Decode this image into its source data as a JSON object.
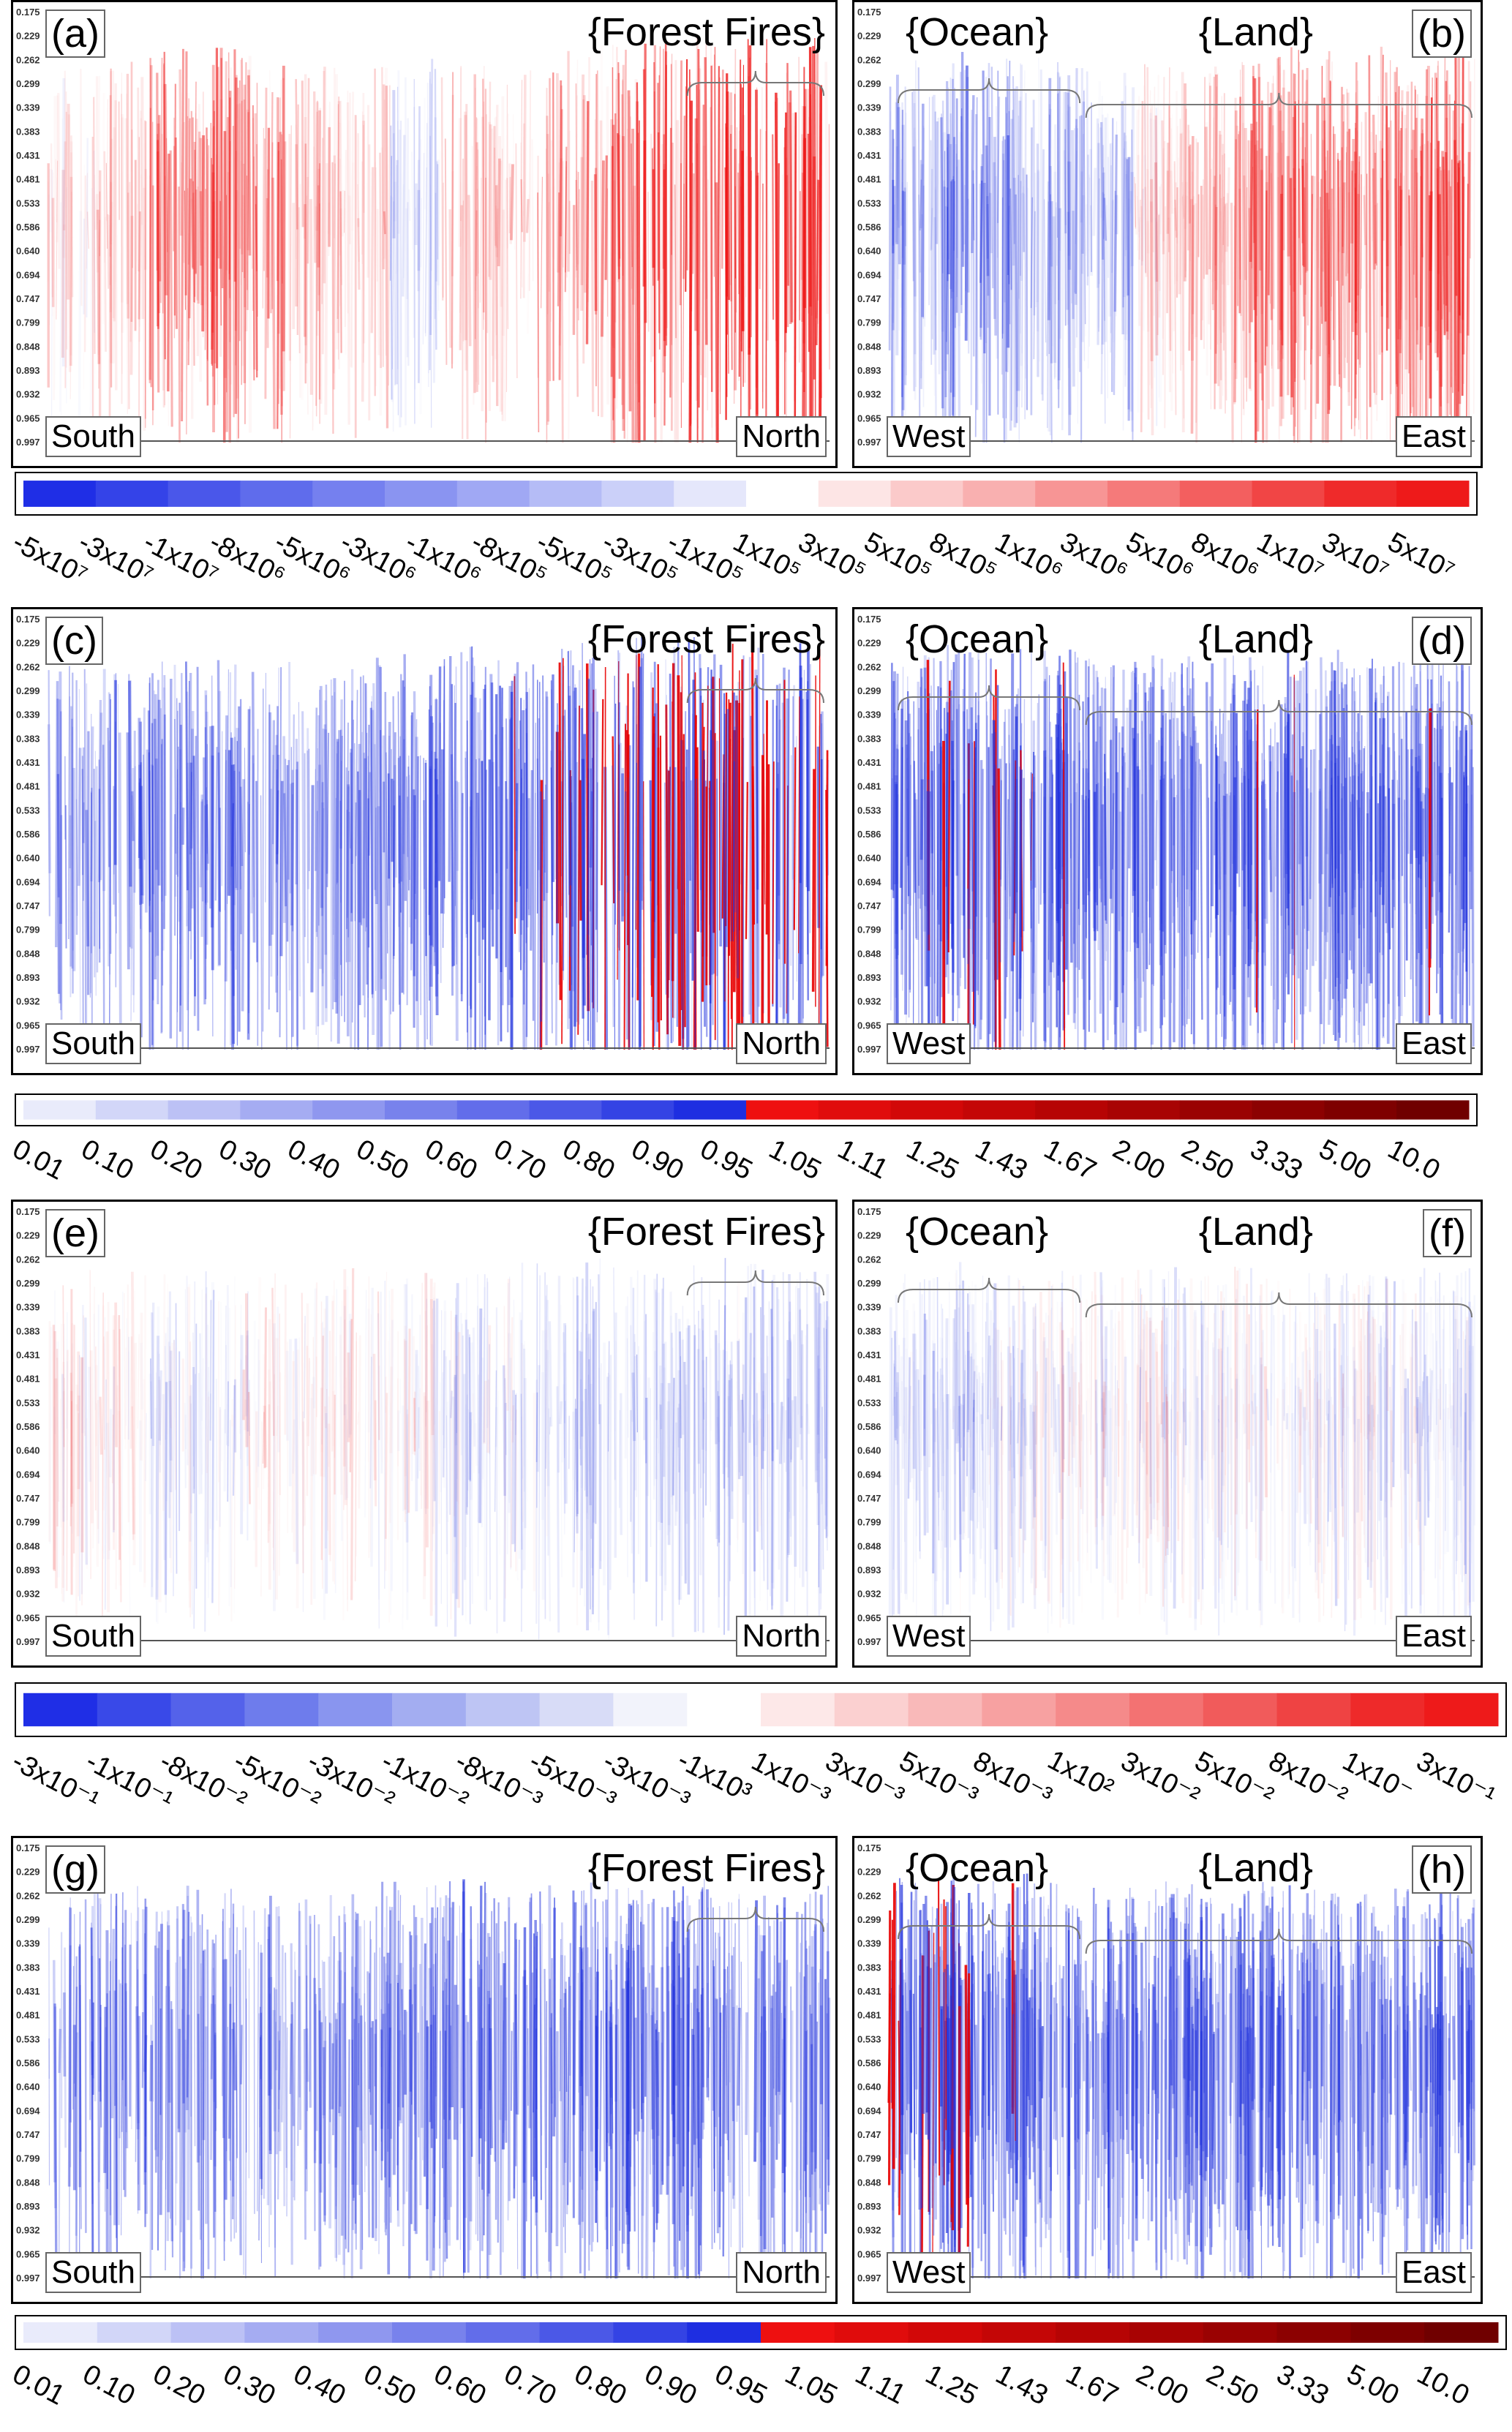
{
  "chart_data": [
    {
      "type": "heatmap",
      "panel_label": "(a)",
      "region_labels": [
        "{Forest Fires}"
      ],
      "left_label": "South",
      "right_label": "North",
      "y_ticks": [
        "0.175",
        "0.229",
        "0.262",
        "0.299",
        "0.339",
        "0.383",
        "0.431",
        "0.481",
        "0.533",
        "0.586",
        "0.640",
        "0.694",
        "0.747",
        "0.799",
        "0.848",
        "0.893",
        "0.932",
        "0.965",
        "0.997"
      ],
      "colorbar_group": "signed_large",
      "pattern": [
        0.1,
        0.2,
        0.55,
        0.6,
        0.55,
        0.3,
        0.2,
        -0.2,
        0.3,
        0.2,
        0.5,
        0.7,
        0.8,
        0.9,
        0.95,
        0.9
      ]
    },
    {
      "type": "heatmap",
      "panel_label": "(b)",
      "region_labels": [
        "{Ocean}",
        "{Land}"
      ],
      "left_label": "West",
      "right_label": "East",
      "y_ticks": [
        "0.175",
        "0.229",
        "0.262",
        "0.299",
        "0.339",
        "0.383",
        "0.431",
        "0.481",
        "0.533",
        "0.586",
        "0.640",
        "0.694",
        "0.747",
        "0.799",
        "0.848",
        "0.893",
        "0.932",
        "0.965",
        "0.997"
      ],
      "colorbar_group": "signed_large",
      "pattern": [
        -0.3,
        -0.5,
        -0.4,
        -0.3,
        -0.2,
        0.1,
        0.2,
        0.5,
        0.6,
        0.5,
        0.6,
        0.7
      ]
    },
    {
      "type": "heatmap",
      "panel_label": "(c)",
      "region_labels": [
        "{Forest Fires}"
      ],
      "left_label": "South",
      "right_label": "North",
      "y_ticks": [
        "0.175",
        "0.229",
        "0.262",
        "0.299",
        "0.339",
        "0.383",
        "0.431",
        "0.481",
        "0.533",
        "0.586",
        "0.640",
        "0.694",
        "0.747",
        "0.799",
        "0.848",
        "0.893",
        "0.932",
        "0.965",
        "0.997"
      ],
      "colorbar_group": "ratio",
      "pattern": [
        0.4,
        0.5,
        0.5,
        0.5,
        0.45,
        0.4,
        0.5,
        0.6,
        0.7,
        0.7,
        0.8,
        0.9,
        1.0,
        1.0,
        1.0,
        0.9
      ]
    },
    {
      "type": "heatmap",
      "panel_label": "(d)",
      "region_labels": [
        "{Ocean}",
        "{Land}"
      ],
      "left_label": "West",
      "right_label": "East",
      "y_ticks": [
        "0.175",
        "0.229",
        "0.262",
        "0.299",
        "0.339",
        "0.383",
        "0.431",
        "0.481",
        "0.533",
        "0.586",
        "0.640",
        "0.694",
        "0.747",
        "0.799",
        "0.848",
        "0.893",
        "0.932",
        "0.965",
        "0.997"
      ],
      "colorbar_group": "ratio",
      "pattern": [
        0.7,
        0.8,
        0.8,
        0.7,
        0.6,
        0.6,
        0.6,
        0.7,
        0.7,
        0.6,
        0.6,
        0.7
      ]
    },
    {
      "type": "heatmap",
      "panel_label": "(e)",
      "region_labels": [
        "{Forest Fires}"
      ],
      "left_label": "South",
      "right_label": "North",
      "y_ticks": [
        "0.175",
        "0.229",
        "0.262",
        "0.299",
        "0.339",
        "0.383",
        "0.431",
        "0.481",
        "0.533",
        "0.586",
        "0.640",
        "0.694",
        "0.747",
        "0.799",
        "0.848",
        "0.893",
        "0.932",
        "0.965",
        "0.997"
      ],
      "colorbar_group": "signed_small",
      "pattern": [
        0.05,
        0.05,
        -0.1,
        -0.1,
        0.05,
        0,
        0.05,
        0,
        -0.1,
        -0.1,
        -0.15,
        -0.2,
        -0.2,
        -0.2,
        -0.15,
        -0.2
      ]
    },
    {
      "type": "heatmap",
      "panel_label": "(f)",
      "region_labels": [
        "{Ocean}",
        "{Land}"
      ],
      "left_label": "West",
      "right_label": "East",
      "y_ticks": [
        "0.175",
        "0.229",
        "0.262",
        "0.299",
        "0.339",
        "0.383",
        "0.431",
        "0.481",
        "0.533",
        "0.586",
        "0.640",
        "0.694",
        "0.747",
        "0.799",
        "0.848",
        "0.893",
        "0.932",
        "0.965",
        "0.997"
      ],
      "colorbar_group": "signed_small",
      "pattern": [
        -0.15,
        -0.15,
        -0.1,
        0,
        0,
        0,
        -0.05,
        0,
        0,
        -0.05,
        -0.1,
        -0.1
      ]
    },
    {
      "type": "heatmap",
      "panel_label": "(g)",
      "region_labels": [
        "{Forest Fires}"
      ],
      "left_label": "South",
      "right_label": "North",
      "y_ticks": [
        "0.175",
        "0.229",
        "0.262",
        "0.299",
        "0.339",
        "0.383",
        "0.431",
        "0.481",
        "0.533",
        "0.586",
        "0.640",
        "0.694",
        "0.747",
        "0.799",
        "0.848",
        "0.893",
        "0.932",
        "0.965",
        "0.997"
      ],
      "colorbar_group": "ratio",
      "pattern": [
        0.5,
        0.55,
        0.5,
        0.45,
        0.4,
        0.4,
        0.5,
        0.6,
        0.6,
        0.6,
        0.6,
        0.65,
        0.6,
        0.6,
        0.55,
        0.6
      ]
    },
    {
      "type": "heatmap",
      "panel_label": "(h)",
      "region_labels": [
        "{Ocean}",
        "{Land}"
      ],
      "left_label": "West",
      "right_label": "East",
      "y_ticks": [
        "0.175",
        "0.229",
        "0.262",
        "0.299",
        "0.339",
        "0.383",
        "0.431",
        "0.481",
        "0.533",
        "0.586",
        "0.640",
        "0.694",
        "0.747",
        "0.799",
        "0.848",
        "0.893",
        "0.932",
        "0.965",
        "0.997"
      ],
      "colorbar_group": "ratio",
      "pattern": [
        0.8,
        0.85,
        0.7,
        0.6,
        0.6,
        0.55,
        0.55,
        0.6,
        0.6,
        0.55,
        0.6,
        0.6
      ]
    }
  ],
  "colorbars": {
    "signed_large": {
      "colors": [
        "#1f2ee6",
        "#3443e8",
        "#4a57ea",
        "#5f6cec",
        "#7580ef",
        "#8a94f1",
        "#a0a8f4",
        "#b5bcf6",
        "#cbd0f9",
        "#e5e7fb",
        "#ffffff",
        "#fde5e5",
        "#fbcaca",
        "#f9b0b0",
        "#f79595",
        "#f57a7a",
        "#f35f5f",
        "#f14545",
        "#ef2a2a",
        "#ee1a1a"
      ],
      "ticks": [
        "-5x10⁷",
        "-3x10⁷",
        "-1x10⁷",
        "-8x10⁶",
        "-5x10⁶",
        "-3x10⁶",
        "-1x10⁶",
        "-8x10⁵",
        "-5x10⁵",
        "-3x10⁵",
        "-1x10⁵",
        "1x10⁵",
        "3x10⁵",
        "5x10⁵",
        "8x10⁵",
        "1x10⁶",
        "3x10⁶",
        "5x10⁶",
        "8x10⁶",
        "1x10⁷",
        "3x10⁷",
        "5x10⁷"
      ]
    },
    "ratio": {
      "colors": [
        "#e9ebfb",
        "#d2d6f8",
        "#bcc1f5",
        "#a5acf2",
        "#8f97ef",
        "#7882ec",
        "#626dea",
        "#4b58e7",
        "#3443e4",
        "#1e2ee1",
        "#ee1010",
        "#e00c0c",
        "#d20808",
        "#c40606",
        "#b60404",
        "#a80303",
        "#9a0202",
        "#8c0101",
        "#7e0000",
        "#700000"
      ],
      "ticks": [
        "0.01",
        "0.10",
        "0.20",
        "0.30",
        "0.40",
        "0.50",
        "0.60",
        "0.70",
        "0.80",
        "0.90",
        "0.95",
        "1.05",
        "1.11",
        "1.25",
        "1.43",
        "1.67",
        "2.00",
        "2.50",
        "3.33",
        "5.00",
        "10.0"
      ]
    },
    "signed_small": {
      "colors": [
        "#1f2ee6",
        "#3949e8",
        "#5462ea",
        "#6e7cec",
        "#8995ef",
        "#a3adf1",
        "#bec5f4",
        "#d8dcf7",
        "#f2f3fb",
        "#ffffff",
        "#fde8e8",
        "#fbd0d0",
        "#f9b9b9",
        "#f7a1a1",
        "#f58a8a",
        "#f37272",
        "#f15b5b",
        "#ef4343",
        "#ee2a2a",
        "#ee1a1a"
      ],
      "ticks": [
        "-3x10⁻¹",
        "-1x10⁻¹",
        "-8x10⁻²",
        "-5x10⁻²",
        "-3x10⁻²",
        "-1x10⁻²",
        "-8x10⁻³",
        "-5x10⁻³",
        "-3x10⁻³",
        "-1x10³",
        "1x10⁻³",
        "3x10⁻³",
        "5x10⁻³",
        "8x10⁻³",
        "1x10²",
        "3x10⁻²",
        "5x10⁻²",
        "8x10⁻²",
        "1x10⁻",
        "3x10⁻¹"
      ]
    }
  }
}
